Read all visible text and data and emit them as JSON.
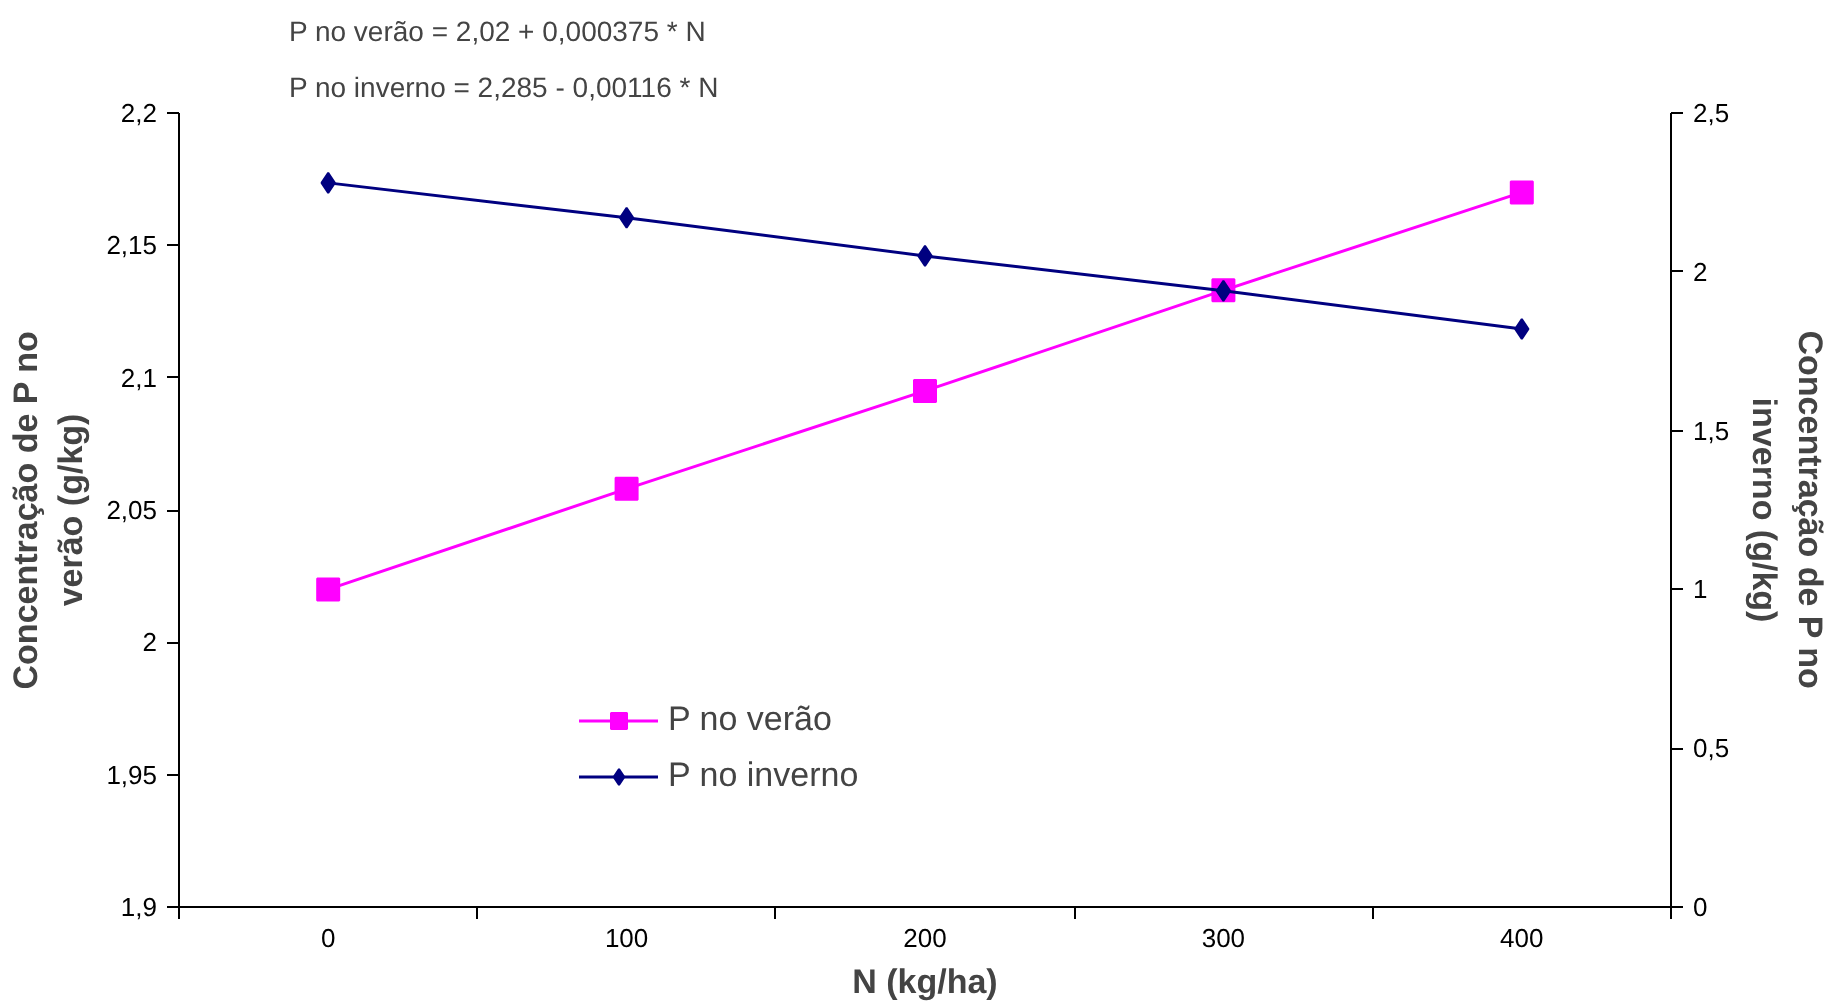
{
  "chart_data": {
    "type": "line",
    "annotations": [
      "P no verão = 2,02 + 0,000375 * N",
      "P no inverno = 2,285 - 0,00116 * N"
    ],
    "xlabel": "N (kg/ha)",
    "ylabel": "Concentração de P no verão (g/kg)",
    "y2label": "Concentração de P no inverno (g/kg)",
    "categories": [
      "0",
      "100",
      "200",
      "300",
      "400"
    ],
    "series": [
      {
        "name": "P no verão",
        "color": "#ff00ff",
        "marker": "square",
        "values": [
          2.02,
          2.058,
          2.095,
          2.133,
          2.17
        ]
      },
      {
        "name": "P no inverno",
        "color": "#000080",
        "marker": "diamond",
        "axis": "y2",
        "values": [
          2.28,
          2.17,
          2.05,
          1.94,
          1.82
        ]
      }
    ],
    "ylim": [
      1.9,
      2.2
    ],
    "yticks": [
      {
        "value": 1.9,
        "label": "1,9"
      },
      {
        "value": 1.95,
        "label": "1,95"
      },
      {
        "value": 2,
        "label": "2"
      },
      {
        "value": 2.05,
        "label": "2,05"
      },
      {
        "value": 2.1,
        "label": "2,1"
      },
      {
        "value": 2.15,
        "label": "2,15"
      },
      {
        "value": 2.2,
        "label": "2,2"
      }
    ],
    "y2lim": [
      0,
      2.5
    ],
    "y2ticks": [
      0,
      {
        "value": 0.5,
        "label": "0,5"
      },
      1,
      {
        "value": 1.5,
        "label": "1,5"
      },
      2,
      {
        "value": 2.5,
        "label": "2,5"
      }
    ],
    "grid": false,
    "legend": "center",
    "line_style": "solid"
  }
}
